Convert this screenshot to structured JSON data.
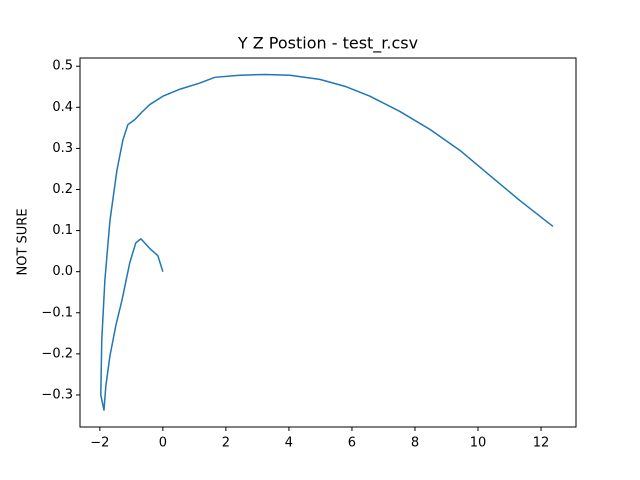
{
  "chart_data": {
    "type": "line",
    "title": "Y Z Postion - test_r.csv",
    "y_label": "NOT SURE",
    "color": "#1f77b4",
    "x": [
      0,
      -0.16,
      -0.41,
      -0.7,
      -0.86,
      -1.05,
      -1.3,
      -1.49,
      -1.68,
      -1.81,
      -1.87,
      -1.97,
      -1.94,
      -1.84,
      -1.68,
      -1.46,
      -1.27,
      -1.11,
      -0.89,
      -0.67,
      -0.41,
      0,
      0.54,
      1.17,
      1.65,
      2.44,
      3.24,
      4.03,
      4.98,
      5.78,
      6.57,
      7.52,
      8.48,
      9.43,
      10.38,
      11.33,
      12.38
    ],
    "values": [
      0,
      0.039,
      0.056,
      0.08,
      0.07,
      0.022,
      -0.07,
      -0.13,
      -0.205,
      -0.278,
      -0.337,
      -0.3,
      -0.168,
      -0.02,
      0.124,
      0.246,
      0.32,
      0.358,
      0.37,
      0.388,
      0.407,
      0.427,
      0.444,
      0.459,
      0.473,
      0.478,
      0.48,
      0.478,
      0.468,
      0.451,
      0.427,
      0.39,
      0.346,
      0.295,
      0.234,
      0.173,
      0.11
    ],
    "xlim": [
      -2.63,
      13.11
    ],
    "ylim": [
      -0.378,
      0.52
    ],
    "xticks": [
      {
        "value": -2,
        "label": "−2"
      },
      0,
      2,
      4,
      6,
      8,
      10,
      12
    ],
    "yticks": [
      {
        "value": -0.3,
        "label": "−0.3"
      },
      {
        "value": -0.2,
        "label": "−0.2"
      },
      {
        "value": -0.1,
        "label": "−0.1"
      },
      {
        "value": 0,
        "label": "0.0"
      },
      0.1,
      0.2,
      0.3,
      0.4,
      0.5
    ]
  }
}
